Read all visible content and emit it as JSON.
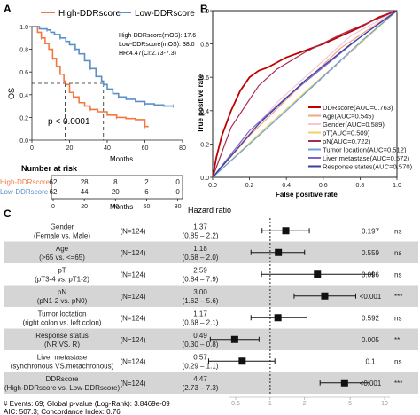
{
  "panels": {
    "a": "A",
    "b": "B",
    "c": "C"
  },
  "colors": {
    "high": "#f4783e",
    "low": "#5b8fc7",
    "ddr": "#c00000",
    "age": "#f6a582",
    "gender": "#f4c7d6",
    "pt": "#f3d35a",
    "pn": "#a52a4f",
    "tumor": "#6aa1e0",
    "liver": "#7b68c9",
    "response": "#3a3f9a",
    "rowShade": "#d5d5d5"
  },
  "km": {
    "legend": [
      "High-DDRscore",
      "Low-DDRscore"
    ],
    "ylabel": "OS",
    "xlabel": "Months",
    "pvalue": "p < 0.0001",
    "stats": [
      "High-DDRscore(mOS):  17.6",
      "Low-DDRscore(mOS):  38.0",
      "HR:4.47(CI:2.73-7.3)"
    ],
    "yticks": [
      "0.0",
      "0.2",
      "0.4",
      "0.6",
      "0.8",
      "1.0"
    ],
    "xticks": [
      "0",
      "20",
      "40",
      "60",
      "80"
    ]
  },
  "risk": {
    "title": "Number at risk",
    "xlabel": "Months",
    "labels": [
      "High-DDRscore",
      "Low-DDRscore"
    ],
    "high": [
      "62",
      "28",
      "8",
      "2",
      "0"
    ],
    "low": [
      "62",
      "44",
      "20",
      "6",
      "0"
    ],
    "xticks": [
      "0",
      "20",
      "40",
      "60",
      "80"
    ]
  },
  "roc": {
    "ylabel": "True positive rate",
    "xlabel": "False positive rate",
    "xticks": [
      "0.0",
      "0.2",
      "0.4",
      "0.6",
      "0.8",
      "1.0"
    ],
    "yticks": [
      "0.0",
      "0.2",
      "0.4",
      "0.6",
      "0.8",
      "1.0"
    ],
    "legend": [
      "DDRscore(AUC=0.763)",
      "Age(AUC=0.545)",
      "Gender(AUC=0.589)",
      "pT(AUC=0.509)",
      "pN(AUC=0.722)",
      "Tumor location(AUC=0.512)",
      "Liver metastase(AUC=0.572)",
      "Response states(AUC=0.570)"
    ]
  },
  "forest": {
    "title": "Hazard ratio",
    "footer1": "# Events: 69; Global p-value (Log-Rank): 3.8469e-09",
    "footer2": "AIC: 507.3; Concordance Index: 0.76",
    "xticks": [
      "0.5",
      "1",
      "2",
      "5",
      "10"
    ],
    "rows": [
      {
        "label1": "Gender",
        "label2": "(Female vs. Male)",
        "n": "(N=124)",
        "hr": "1.37",
        "ci": "(0.85 – 2.2)",
        "p": "0.197",
        "sig": "ns"
      },
      {
        "label1": "Age",
        "label2": "(>65 vs. <=65)",
        "n": "(N=124)",
        "hr": "1.18",
        "ci": "(0.68 – 2.0)",
        "p": "0.559",
        "sig": "ns"
      },
      {
        "label1": "pT",
        "label2": "(pT3-4 vs. pT1-2)",
        "n": "(N=124)",
        "hr": "2.59",
        "ci": "(0.84 – 7.9)",
        "p": "0.096",
        "sig": "ns"
      },
      {
        "label1": "pN",
        "label2": "(pN1-2 vs. pN0)",
        "n": "(N=124)",
        "hr": "3.00",
        "ci": "(1.62 – 5.6)",
        "p": "<0.001",
        "sig": "***"
      },
      {
        "label1": "Tumor loctation",
        "label2": "(right colon vs. left colon)",
        "n": "(N=124)",
        "hr": "1.17",
        "ci": "(0.68 – 2.1)",
        "p": "0.592",
        "sig": "ns"
      },
      {
        "label1": "Response status",
        "label2": "(NR VS. R)",
        "n": "(N=124)",
        "hr": "0.49",
        "ci": "(0.30 – 0.8)",
        "p": "0.005",
        "sig": "**"
      },
      {
        "label1": "Liver metastase",
        "label2": "(synchronous VS.metachronous)",
        "n": "(N=124)",
        "hr": "0.57",
        "ci": "(0.29 – 1.1)",
        "p": "0.1",
        "sig": "ns"
      },
      {
        "label1": "DDRscore",
        "label2": "(High-DDRscore vs. Low-DDRscore)",
        "n": "(N=124)",
        "hr": "4.47",
        "ci": "(2.73 – 7.3)",
        "p": "<0.001",
        "sig": "***"
      }
    ]
  },
  "chart_data": [
    {
      "type": "line",
      "title": "",
      "xlabel": "Months",
      "ylabel": "OS",
      "xlim": [
        0,
        80
      ],
      "ylim": [
        0,
        1
      ],
      "series": [
        {
          "name": "High-DDRscore",
          "x": [
            0,
            3,
            5,
            7,
            9,
            11,
            13,
            15,
            17,
            18,
            20,
            22,
            25,
            28,
            31,
            35,
            40,
            45,
            50,
            55,
            60,
            62
          ],
          "y": [
            1.0,
            0.95,
            0.9,
            0.85,
            0.8,
            0.72,
            0.65,
            0.58,
            0.52,
            0.49,
            0.42,
            0.38,
            0.33,
            0.3,
            0.27,
            0.25,
            0.22,
            0.2,
            0.19,
            0.18,
            0.12,
            0.12
          ]
        },
        {
          "name": "Low-DDRscore",
          "x": [
            0,
            4,
            8,
            10,
            12,
            15,
            18,
            20,
            23,
            25,
            28,
            31,
            34,
            37,
            38,
            40,
            43,
            46,
            50,
            55,
            60,
            65,
            70,
            75
          ],
          "y": [
            1.0,
            0.98,
            0.97,
            0.95,
            0.93,
            0.9,
            0.87,
            0.84,
            0.8,
            0.76,
            0.7,
            0.63,
            0.56,
            0.52,
            0.49,
            0.45,
            0.41,
            0.38,
            0.36,
            0.34,
            0.32,
            0.31,
            0.3,
            0.3
          ]
        }
      ]
    },
    {
      "type": "table",
      "title": "Number at risk",
      "columns": [
        0,
        20,
        40,
        60,
        80
      ],
      "rows": [
        {
          "name": "High-DDRscore",
          "values": [
            62,
            28,
            8,
            2,
            0
          ]
        },
        {
          "name": "Low-DDRscore",
          "values": [
            62,
            44,
            20,
            6,
            0
          ]
        }
      ]
    },
    {
      "type": "line",
      "title": "",
      "xlabel": "False positive rate",
      "ylabel": "True positive rate",
      "xlim": [
        0,
        1
      ],
      "ylim": [
        0,
        1
      ],
      "series": [
        {
          "name": "DDRscore(AUC=0.763)",
          "x": [
            0,
            0.02,
            0.05,
            0.1,
            0.15,
            0.2,
            0.25,
            0.3,
            0.4,
            0.5,
            0.6,
            0.7,
            0.8,
            0.9,
            1.0
          ],
          "y": [
            0,
            0.12,
            0.25,
            0.4,
            0.52,
            0.6,
            0.64,
            0.66,
            0.72,
            0.76,
            0.8,
            0.85,
            0.9,
            0.96,
            1.0
          ]
        },
        {
          "name": "Age(AUC=0.545)",
          "x": [
            0,
            0.2,
            0.45,
            0.7,
            1.0
          ],
          "y": [
            0,
            0.25,
            0.52,
            0.78,
            1.0
          ]
        },
        {
          "name": "Gender(AUC=0.589)",
          "x": [
            0,
            0.15,
            0.35,
            0.55,
            0.75,
            1.0
          ],
          "y": [
            0,
            0.2,
            0.45,
            0.65,
            0.85,
            1.0
          ]
        },
        {
          "name": "pT(AUC=0.509)",
          "x": [
            0,
            0.3,
            0.6,
            0.9,
            1.0
          ],
          "y": [
            0,
            0.31,
            0.61,
            0.9,
            1.0
          ]
        },
        {
          "name": "pN(AUC=0.722)",
          "x": [
            0,
            0.1,
            0.25,
            0.35,
            0.5,
            0.7,
            1.0
          ],
          "y": [
            0,
            0.3,
            0.55,
            0.65,
            0.75,
            0.86,
            1.0
          ]
        },
        {
          "name": "Tumor location(AUC=0.512)",
          "x": [
            0,
            0.4,
            0.8,
            1.0
          ],
          "y": [
            0,
            0.4,
            0.81,
            1.0
          ]
        },
        {
          "name": "Liver metastase(AUC=0.572)",
          "x": [
            0,
            0.2,
            0.4,
            0.6,
            0.8,
            1.0
          ],
          "y": [
            0,
            0.28,
            0.48,
            0.66,
            0.84,
            1.0
          ]
        },
        {
          "name": "Response states(AUC=0.570)",
          "x": [
            0,
            0.25,
            0.5,
            0.75,
            1.0
          ],
          "y": [
            0,
            0.32,
            0.58,
            0.8,
            1.0
          ]
        }
      ]
    },
    {
      "type": "scatter",
      "title": "Hazard ratio",
      "xscale": "log",
      "xlim": [
        0.3,
        12
      ],
      "categories": [
        "Gender",
        "Age",
        "pT",
        "pN",
        "Tumor loctation",
        "Response status",
        "Liver metastase",
        "DDRscore"
      ],
      "hr": [
        1.37,
        1.18,
        2.59,
        3.0,
        1.17,
        0.49,
        0.57,
        4.47
      ],
      "ci_low": [
        0.85,
        0.68,
        0.84,
        1.62,
        0.68,
        0.3,
        0.29,
        2.73
      ],
      "ci_high": [
        2.2,
        2.0,
        7.9,
        5.6,
        2.1,
        0.8,
        1.1,
        7.3
      ]
    }
  ]
}
